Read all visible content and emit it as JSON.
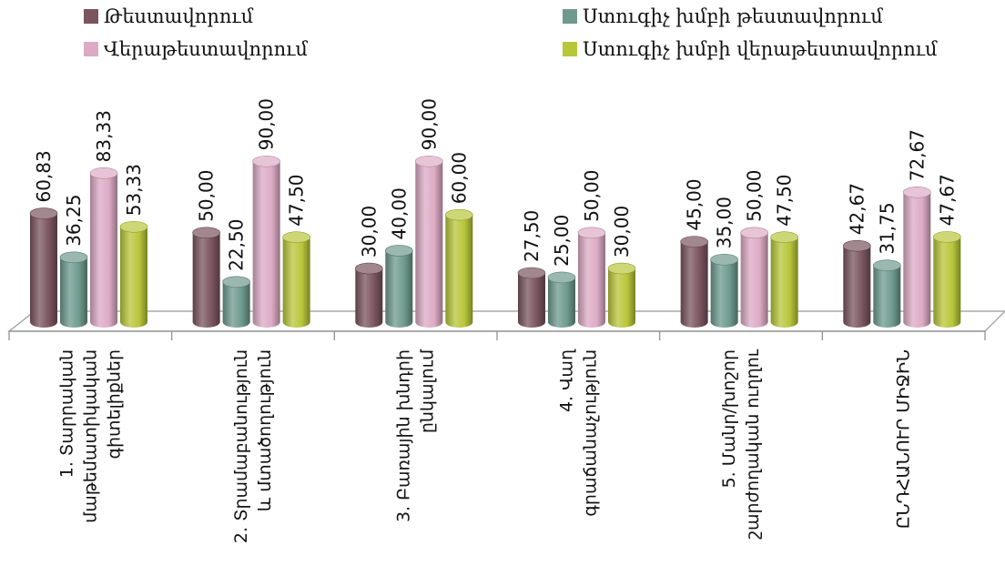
{
  "chart_data": {
    "type": "bar",
    "style": "3d-cylinder",
    "legend_position": "top",
    "categories": [
      [
        "1. Տարրական",
        "մաթեմատիկական",
        "գիտելիքներ"
      ],
      [
        "2. Տրամաբանություն",
        "և մտածողություն"
      ],
      [
        "3. Բառային խնդրի",
        "ընկալում"
      ],
      [
        "4. Վաղ",
        "գրաճանաչություն"
      ],
      [
        "5. Մանր/խոշոր",
        "շարժողական ուղղու"
      ],
      [
        "ԸՆԴՀԱՆՈՒՐ ՄԻՋԻՆ"
      ]
    ],
    "series": [
      {
        "name": "Թեստավորում",
        "color": "#7a545f",
        "values": [
          60.83,
          50.0,
          30.0,
          27.5,
          45.0,
          42.67
        ],
        "labels": [
          "60,83",
          "50,00",
          "30,00",
          "27,50",
          "45,00",
          "42,67"
        ]
      },
      {
        "name": "Ստուգիչ խմբի թեստավորում",
        "color": "#6e9a8e",
        "values": [
          36.25,
          22.5,
          40.0,
          25.0,
          35.0,
          31.75
        ],
        "labels": [
          "36,25",
          "22,50",
          "40,00",
          "25,00",
          "35,00",
          "31,75"
        ]
      },
      {
        "name": "Վերաթեստավորում",
        "color": "#dcaac4",
        "values": [
          83.33,
          90.0,
          90.0,
          50.0,
          50.0,
          72.67
        ],
        "labels": [
          "83,33",
          "90,00",
          "90,00",
          "50,00",
          "50,00",
          "72,67"
        ]
      },
      {
        "name": "Ստուգիչ խմբի վերաթեստավորում",
        "color": "#b8c63a",
        "values": [
          53.33,
          47.5,
          60.0,
          30.0,
          47.5,
          47.67
        ],
        "labels": [
          "53,33",
          "47,50",
          "60,00",
          "30,00",
          "47,50",
          "47,67"
        ]
      }
    ],
    "ylim": [
      0,
      100
    ],
    "grid": false
  }
}
